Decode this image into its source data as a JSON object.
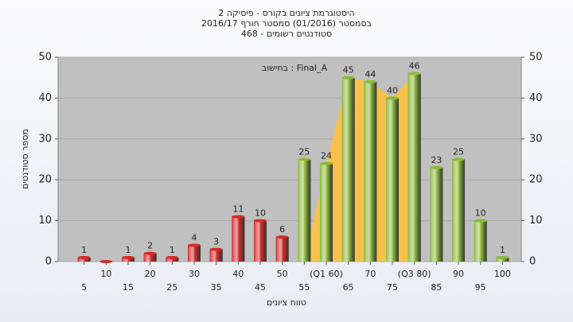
{
  "chart_data": {
    "type": "bar",
    "title": "היסטוגרמת ציונים בקורס - פיסיקה 2",
    "subtitle": "בסמסטר  (01/2016)  סמסטר חורף 2016/17",
    "subtitle2": "סטודנטים רשומים - 468",
    "annotation": "בחישוב : Final_A",
    "x_label": "טווח ציונים",
    "y_label": "מספר סטודנטים",
    "categories": [
      "5",
      "10",
      "15",
      "20",
      "25",
      "30",
      "35",
      "40",
      "45",
      "50",
      "55",
      "(Q1 60)",
      "65",
      "70",
      "75",
      "(Q3 80)",
      "85",
      "90",
      "95",
      "100"
    ],
    "values": [
      1,
      0,
      1,
      2,
      1,
      4,
      3,
      11,
      10,
      6,
      25,
      24,
      45,
      44,
      40,
      46,
      23,
      25,
      10,
      1
    ],
    "colors": [
      "#d42a2a",
      "#d42a2a",
      "#d42a2a",
      "#d42a2a",
      "#d42a2a",
      "#d42a2a",
      "#d42a2a",
      "#d42a2a",
      "#d42a2a",
      "#d42a2a",
      "#8cb83a",
      "#8cb83a",
      "#8cb83a",
      "#8cb83a",
      "#8cb83a",
      "#8cb83a",
      "#8cb83a",
      "#8cb83a",
      "#8cb83a",
      "#8cb83a"
    ],
    "area_color": "#f7c14c",
    "ylim": [
      0,
      50
    ],
    "yticks": [
      0,
      10,
      20,
      30,
      40,
      50
    ],
    "y2lim": [
      0,
      50
    ],
    "y2ticks": [
      0,
      10,
      20,
      30,
      40,
      50
    ],
    "grid": true
  }
}
